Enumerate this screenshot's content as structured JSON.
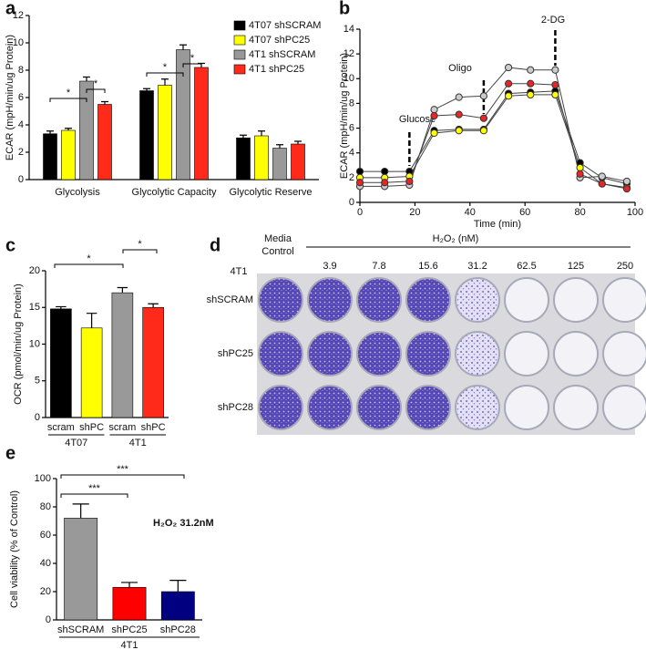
{
  "chart_data": [
    {
      "type": "bar",
      "panel_label": "a",
      "ylabel": "ECAR (mpH/min/ug Protein)",
      "categories": [
        "Glycolysis",
        "Glycolytic Capacity",
        "Glycolytic Reserve"
      ],
      "series": [
        {
          "name": "4T07 shSCRAM",
          "color": "#000000",
          "values": [
            3.35,
            6.5,
            3.05
          ],
          "errors": [
            0.2,
            0.15,
            0.2
          ]
        },
        {
          "name": "4T07 shPC25",
          "color": "#ffff00",
          "values": [
            3.6,
            6.9,
            3.2
          ],
          "errors": [
            0.15,
            0.45,
            0.35
          ]
        },
        {
          "name": "4T1 shSCRAM",
          "color": "#999999",
          "values": [
            7.2,
            9.5,
            2.3
          ],
          "errors": [
            0.3,
            0.35,
            0.25
          ]
        },
        {
          "name": "4T1 shPC25",
          "color": "#ff2a1a",
          "values": [
            5.5,
            8.2,
            2.6
          ],
          "errors": [
            0.2,
            0.3,
            0.2
          ]
        }
      ],
      "ylim": [
        0,
        12
      ],
      "yticks": [
        0,
        2,
        4,
        6,
        8,
        10,
        12
      ],
      "legend": "upper right",
      "significance": [
        "*",
        "*",
        "*",
        "*"
      ]
    },
    {
      "type": "line",
      "panel_label": "b",
      "ylabel": "ECAR (mpH/min/ug Protein)",
      "xlabel": "Time (min)",
      "x": [
        0,
        9,
        18,
        27,
        36,
        45,
        54,
        62,
        71,
        80,
        88,
        97
      ],
      "series": [
        {
          "color": "#000000",
          "values": [
            2.5,
            2.5,
            2.5,
            5.8,
            5.9,
            5.9,
            8.8,
            8.9,
            9.0,
            3.2,
            2.0,
            1.5
          ]
        },
        {
          "color": "#ffff00",
          "values": [
            2.0,
            2.0,
            2.1,
            5.6,
            5.8,
            5.8,
            8.6,
            8.7,
            8.7,
            2.8,
            1.5,
            1.2
          ]
        },
        {
          "color": "#cccccc",
          "values": [
            1.3,
            1.3,
            1.4,
            7.5,
            8.5,
            8.6,
            10.9,
            10.7,
            10.7,
            2.0,
            2.1,
            1.7
          ]
        },
        {
          "color": "#e8262a",
          "values": [
            1.6,
            1.6,
            1.7,
            7.0,
            7.1,
            6.8,
            9.6,
            9.6,
            9.5,
            2.3,
            1.5,
            1.1
          ]
        }
      ],
      "xlim": [
        0,
        100
      ],
      "xticks": [
        0,
        20,
        40,
        60,
        80,
        100
      ],
      "ylim": [
        0,
        14
      ],
      "yticks": [
        0,
        2,
        4,
        6,
        8,
        10,
        12,
        14
      ],
      "annotations": [
        "Glucose",
        "Oligo",
        "2-DG"
      ]
    },
    {
      "type": "bar",
      "panel_label": "c",
      "ylabel": "OCR (pmol/min/ug Protein)",
      "categories": [
        "scram",
        "shPC",
        "scram",
        "shPC"
      ],
      "groups": [
        "4T07",
        "4T1"
      ],
      "values": [
        14.8,
        12.2,
        17.0,
        15.0
      ],
      "errors": [
        0.3,
        2.0,
        0.7,
        0.5
      ],
      "colors": [
        "#000000",
        "#ffff00",
        "#999999",
        "#ff2a1a"
      ],
      "ylim": [
        0,
        20
      ],
      "yticks": [
        0,
        5,
        10,
        15,
        20
      ],
      "significance": [
        "*",
        "*"
      ]
    },
    {
      "type": "bar",
      "panel_label": "e",
      "ylabel": "Cell viability (% of Control)",
      "categories": [
        "shSCRAM",
        "shPC25",
        "shPC28"
      ],
      "groups": [
        "4T1"
      ],
      "values": [
        72,
        23,
        20
      ],
      "errors": [
        10,
        3.5,
        8
      ],
      "colors": [
        "#999999",
        "#ff0000",
        "#000080"
      ],
      "ylim": [
        0,
        100
      ],
      "yticks": [
        0,
        20,
        40,
        60,
        80,
        100
      ],
      "significance": [
        "***",
        "***"
      ],
      "annotation": "H₂O₂ 31.2nM"
    }
  ],
  "panel_d": {
    "panel_label": "d",
    "media_control": [
      "Media",
      "Control"
    ],
    "treatment": "H₂O₂ (nM)",
    "concentrations": [
      "3.9",
      "7.8",
      "15.6",
      "31.2",
      "62.5",
      "125",
      "250"
    ],
    "cell_line": "4T1",
    "rows": [
      "shSCRAM",
      "shPC25",
      "shPC28"
    ]
  }
}
